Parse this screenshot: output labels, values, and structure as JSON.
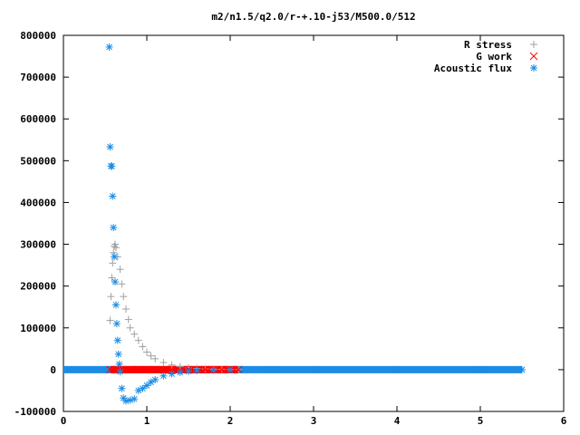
{
  "chart_data": {
    "type": "scatter",
    "title": "m2/n1.5/q2.0/r-+.10-j53/M500.0/512",
    "xlabel": "",
    "ylabel": "",
    "xlim": [
      0,
      6
    ],
    "ylim": [
      -100000,
      800000
    ],
    "xticks": [
      "0",
      "1",
      "2",
      "3",
      "4",
      "5",
      "6"
    ],
    "yticks": [
      "-100000",
      "0",
      "100000",
      "200000",
      "300000",
      "400000",
      "500000",
      "600000",
      "700000",
      "800000"
    ],
    "grid": false,
    "legend_position": "top-right",
    "series": [
      {
        "name": "R stress",
        "marker": "plus",
        "color": "#a0a0a0",
        "x": [
          0.56,
          0.57,
          0.58,
          0.59,
          0.6,
          0.61,
          0.62,
          0.63,
          0.65,
          0.68,
          0.7,
          0.72,
          0.75,
          0.78,
          0.8,
          0.85,
          0.9,
          0.95,
          1.0,
          1.05,
          1.1,
          1.2,
          1.3,
          1.4,
          1.5,
          1.6,
          1.7,
          1.8,
          1.9,
          2.0,
          2.1
        ],
        "y": [
          118000,
          175000,
          220000,
          255000,
          280000,
          295000,
          300000,
          292000,
          270000,
          240000,
          205000,
          175000,
          145000,
          120000,
          100000,
          85000,
          70000,
          55000,
          42000,
          33000,
          26000,
          17000,
          11000,
          7000,
          4500,
          3000,
          2000,
          1200,
          800,
          500,
          300
        ]
      },
      {
        "name": "G work",
        "marker": "cross",
        "color": "#ff0000",
        "x": [
          0.56,
          0.7,
          0.9,
          1.1,
          1.3,
          1.5,
          1.7,
          1.9,
          2.1
        ],
        "y": [
          0,
          0,
          0,
          0,
          0,
          0,
          0,
          0,
          0
        ]
      },
      {
        "name": "Acoustic flux",
        "marker": "star",
        "color": "#1a8ce6",
        "x": [
          0.55,
          0.56,
          0.57,
          0.58,
          0.59,
          0.6,
          0.61,
          0.62,
          0.63,
          0.64,
          0.65,
          0.66,
          0.67,
          0.68,
          0.7,
          0.72,
          0.75,
          0.8,
          0.85,
          0.9,
          0.95,
          1.0,
          1.05,
          1.1,
          1.2,
          1.3,
          1.4,
          1.5,
          1.6,
          1.8,
          2.0,
          2.5,
          3.0,
          4.0,
          5.0,
          5.5
        ],
        "y": [
          772000,
          533000,
          487000,
          487000,
          415000,
          340000,
          270000,
          210000,
          155000,
          110000,
          70000,
          37000,
          13000,
          -5000,
          -45000,
          -68000,
          -75000,
          -73000,
          -70000,
          -50000,
          -45000,
          -38000,
          -30000,
          -24000,
          -15000,
          -10000,
          -6500,
          -4000,
          -2500,
          -1000,
          -300,
          0,
          0,
          0,
          0,
          0
        ]
      }
    ]
  }
}
